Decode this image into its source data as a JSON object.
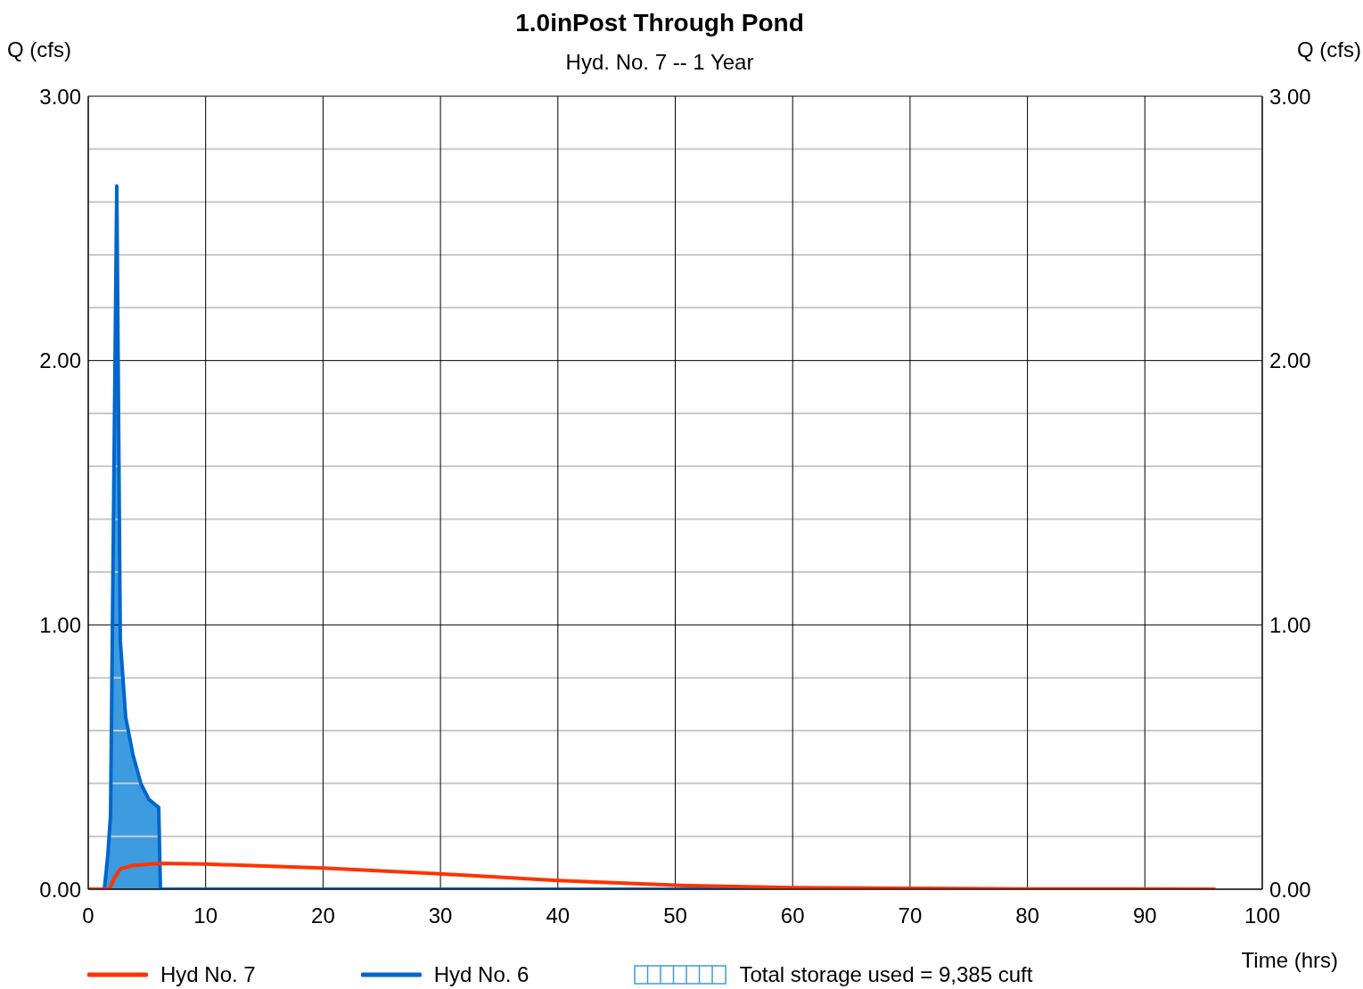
{
  "chart_data": {
    "type": "line",
    "title": "1.0inPost Through Pond",
    "subtitle": "Hyd. No. 7 -- 1 Year",
    "xlabel": "Time (hrs)",
    "ylabel": "Q (cfs)",
    "y2label": "Q (cfs)",
    "series": [
      {
        "name": "Hyd No. 7",
        "color": "#ff3300",
        "x": [
          0,
          1.8,
          2.2,
          2.73,
          3.87,
          6.15,
          10,
          20,
          30,
          40,
          50,
          60,
          70,
          80,
          96
        ],
        "values": [
          0,
          0,
          0.04,
          0.077,
          0.09,
          0.098,
          0.095,
          0.08,
          0.058,
          0.033,
          0.015,
          0.006,
          0.003,
          0.001,
          0
        ]
      },
      {
        "name": "Hyd No. 6",
        "color": "#0066cc",
        "x": [
          0,
          1.37,
          1.67,
          1.9,
          2.43,
          2.73,
          3.19,
          3.8,
          4.48,
          5.16,
          5.7,
          6.0,
          6.15,
          96
        ],
        "values": [
          0,
          0,
          0.13,
          0.28,
          2.66,
          0.94,
          0.65,
          0.51,
          0.4,
          0.34,
          0.32,
          0.31,
          0,
          0
        ]
      },
      {
        "name": "Total storage used = 9,385 cuft",
        "type": "area",
        "color": "#3d9be0",
        "x": [
          1.37,
          1.67,
          1.9,
          2.43,
          2.73,
          3.19,
          3.8,
          4.48,
          5.16,
          5.7,
          6.0
        ],
        "values": [
          0,
          0.13,
          0.28,
          2.66,
          0.94,
          0.65,
          0.51,
          0.4,
          0.34,
          0.32,
          0.31
        ]
      }
    ],
    "xlim": [
      0,
      100
    ],
    "xticks": [
      0,
      10,
      20,
      30,
      40,
      50,
      60,
      70,
      80,
      90,
      100
    ],
    "ylim": [
      0,
      3
    ],
    "yticks": [
      {
        "value": 0,
        "label": "0.00"
      },
      {
        "value": 0.2,
        "label": null
      },
      {
        "value": 0.4,
        "label": null
      },
      {
        "value": 0.6,
        "label": null
      },
      {
        "value": 0.8,
        "label": null
      },
      {
        "value": 1,
        "label": "1.00"
      },
      {
        "value": 1.2,
        "label": null
      },
      {
        "value": 1.4,
        "label": null
      },
      {
        "value": 1.6,
        "label": null
      },
      {
        "value": 1.8,
        "label": null
      },
      {
        "value": 2,
        "label": "2.00"
      },
      {
        "value": 2.2,
        "label": null
      },
      {
        "value": 2.4,
        "label": null
      },
      {
        "value": 2.6,
        "label": null
      },
      {
        "value": 2.8,
        "label": null
      },
      {
        "value": 3,
        "label": "3.00"
      }
    ],
    "y2lim": [
      0,
      3
    ],
    "y2ticks": [
      {
        "value": 0,
        "label": "0.00"
      },
      {
        "value": 1,
        "label": "1.00"
      },
      {
        "value": 2,
        "label": "2.00"
      },
      {
        "value": 3,
        "label": "3.00"
      }
    ],
    "grid": true,
    "legend": "bottom",
    "marker": "none",
    "line_style": "solid"
  }
}
